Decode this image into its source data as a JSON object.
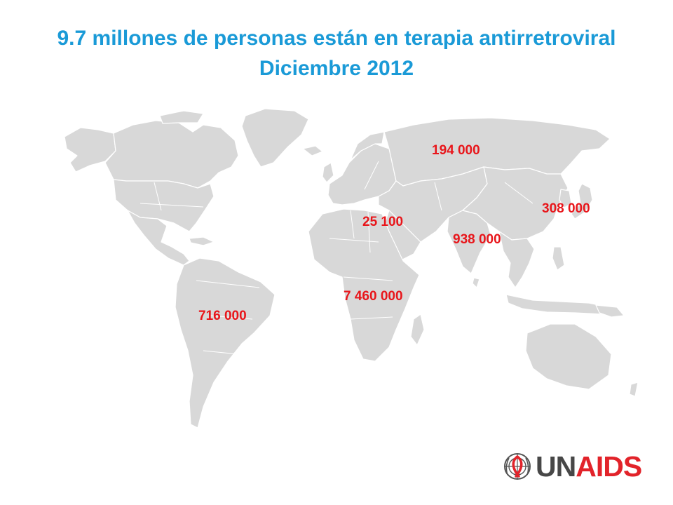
{
  "title": {
    "line1": "9.7 millones de personas están en terapia antirretroviral",
    "line2": "Diciembre 2012"
  },
  "colors": {
    "title": "#1a9ad7",
    "label": "#e8161b",
    "land": "#d8d8d8",
    "border": "#ffffff",
    "logo_un": "#474747",
    "logo_aids": "#e2232a"
  },
  "regions": [
    {
      "id": "eastern-europe-central-asia",
      "value": "194 000"
    },
    {
      "id": "east-asia",
      "value": "308 000"
    },
    {
      "id": "middle-east-north-africa",
      "value": "25 100"
    },
    {
      "id": "south-southeast-asia",
      "value": "938 000"
    },
    {
      "id": "sub-saharan-africa",
      "value": "7 460 000"
    },
    {
      "id": "latin-america",
      "value": "716 000"
    }
  ],
  "logo": {
    "un": "UN",
    "aids": "AIDS",
    "emblem": "un-emblem-red-ribbon-icon"
  }
}
